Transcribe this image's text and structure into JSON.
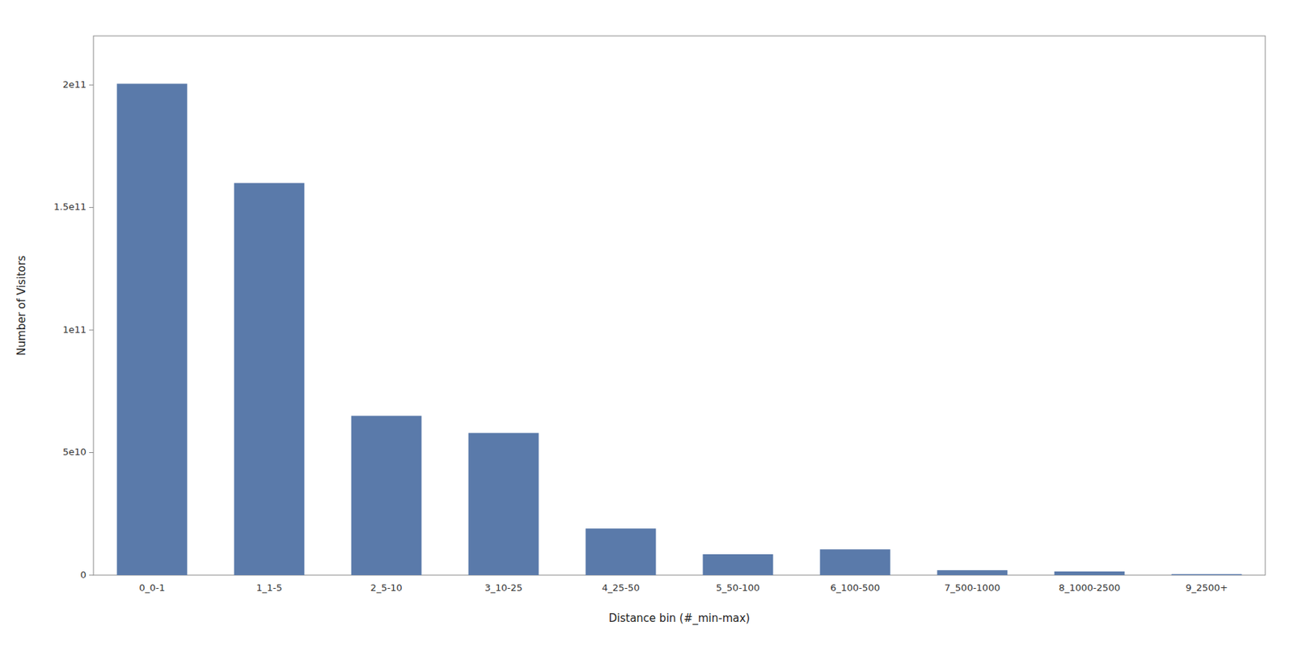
{
  "chart_data": {
    "type": "bar",
    "categories": [
      "0_0-1",
      "1_1-5",
      "2_5-10",
      "3_10-25",
      "4_25-50",
      "5_50-100",
      "6_100-500",
      "7_500-1000",
      "8_1000-2500",
      "9_2500+"
    ],
    "values": [
      200500000000.0,
      160000000000.0,
      65000000000.0,
      58000000000.0,
      19000000000.0,
      8500000000.0,
      10500000000.0,
      2000000000.0,
      1500000000.0,
      400000000.0
    ],
    "color": "#5a7aaa",
    "xlabel": "Distance bin (#_min-max)",
    "ylabel": "Number of Visitors",
    "ylim": [
      0,
      220000000000.0
    ],
    "yticks": [
      0,
      {
        "value": 50000000000.0,
        "label": "5e10"
      },
      {
        "value": 100000000000.0,
        "label": "1e11"
      },
      {
        "value": 150000000000.0,
        "label": "1.5e11"
      },
      {
        "value": 200000000000.0,
        "label": "2e11"
      }
    ],
    "grid": false
  }
}
